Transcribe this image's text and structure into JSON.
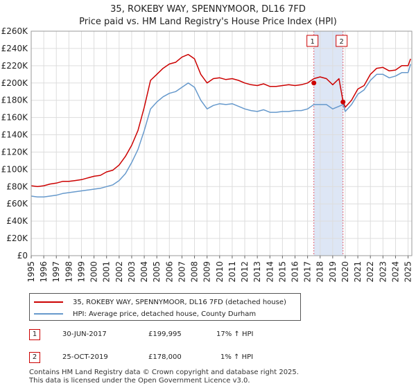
{
  "title": "35, ROKEBY WAY, SPENNYMOOR, DL16 7FD",
  "subtitle": "Price paid vs. HM Land Registry's House Price Index (HPI)",
  "chart_data": {
    "type": "line",
    "xlim": [
      1995,
      2025.3
    ],
    "ylim": [
      0,
      260000
    ],
    "ytick_labels": [
      "£0",
      "£20K",
      "£40K",
      "£60K",
      "£80K",
      "£100K",
      "£120K",
      "£140K",
      "£160K",
      "£180K",
      "£200K",
      "£220K",
      "£240K",
      "£260K"
    ],
    "ytick_values": [
      0,
      20000,
      40000,
      60000,
      80000,
      100000,
      120000,
      140000,
      160000,
      180000,
      200000,
      220000,
      240000,
      260000
    ],
    "xtick_labels": [
      "1995",
      "1996",
      "1997",
      "1998",
      "1999",
      "2000",
      "2001",
      "2002",
      "2003",
      "2004",
      "2005",
      "2006",
      "2007",
      "2008",
      "2009",
      "2010",
      "2011",
      "2012",
      "2013",
      "2014",
      "2015",
      "2016",
      "2017",
      "2018",
      "2019",
      "2020",
      "2021",
      "2022",
      "2023",
      "2024",
      "2025"
    ],
    "xtick_values": [
      1995,
      1996,
      1997,
      1998,
      1999,
      2000,
      2001,
      2002,
      2003,
      2004,
      2005,
      2006,
      2007,
      2008,
      2009,
      2010,
      2011,
      2012,
      2013,
      2014,
      2015,
      2016,
      2017,
      2018,
      2019,
      2020,
      2021,
      2022,
      2023,
      2024,
      2025
    ],
    "grid": true,
    "colors": {
      "property": "#cc0000",
      "hpi": "#6699cc",
      "shade": "#dde6f5",
      "marker_line": "#e06070"
    },
    "series": [
      {
        "name": "35, ROKEBY WAY, SPENNYMOOR, DL16 7FD (detached house)",
        "color": "#cc0000",
        "x": [
          1995,
          1995.5,
          1996,
          1996.5,
          1997,
          1997.5,
          1998,
          1998.5,
          1999,
          1999.5,
          2000,
          2000.5,
          2001,
          2001.5,
          2002,
          2002.5,
          2003,
          2003.5,
          2004,
          2004.5,
          2005,
          2005.5,
          2006,
          2006.5,
          2007,
          2007.5,
          2008,
          2008.5,
          2009,
          2009.5,
          2010,
          2010.5,
          2011,
          2011.5,
          2012,
          2012.5,
          2013,
          2013.5,
          2014,
          2014.5,
          2015,
          2015.5,
          2016,
          2016.5,
          2017,
          2017.5,
          2018,
          2018.5,
          2019,
          2019.5,
          2019.83,
          2020,
          2020.5,
          2021,
          2021.5,
          2022,
          2022.5,
          2023,
          2023.5,
          2024,
          2024.5,
          2025,
          2025.2
        ],
        "y": [
          81000,
          80000,
          81000,
          83000,
          84000,
          86000,
          86000,
          87000,
          88000,
          90000,
          92000,
          93000,
          97000,
          99000,
          105000,
          115000,
          128000,
          145000,
          172000,
          203000,
          210000,
          217000,
          222000,
          224000,
          230000,
          233000,
          228000,
          210000,
          200000,
          205000,
          206000,
          204000,
          205000,
          203000,
          200000,
          198000,
          197000,
          199000,
          196000,
          196000,
          197000,
          198000,
          197000,
          198000,
          199995,
          205000,
          207000,
          205000,
          198000,
          205000,
          178000,
          172000,
          180000,
          193000,
          197000,
          210000,
          217000,
          218000,
          214000,
          215000,
          220000,
          220000,
          228000
        ]
      },
      {
        "name": "HPI: Average price, detached house, County Durham",
        "color": "#6699cc",
        "x": [
          1995,
          1995.5,
          1996,
          1996.5,
          1997,
          1997.5,
          1998,
          1998.5,
          1999,
          1999.5,
          2000,
          2000.5,
          2001,
          2001.5,
          2002,
          2002.5,
          2003,
          2003.5,
          2004,
          2004.5,
          2005,
          2005.5,
          2006,
          2006.5,
          2007,
          2007.5,
          2008,
          2008.5,
          2009,
          2009.5,
          2010,
          2010.5,
          2011,
          2011.5,
          2012,
          2012.5,
          2013,
          2013.5,
          2014,
          2014.5,
          2015,
          2015.5,
          2016,
          2016.5,
          2017,
          2017.5,
          2018,
          2018.5,
          2019,
          2019.5,
          2019.83,
          2020,
          2020.5,
          2021,
          2021.5,
          2022,
          2022.5,
          2023,
          2023.5,
          2024,
          2024.5,
          2025,
          2025.2
        ],
        "y": [
          69000,
          68000,
          68000,
          69000,
          70000,
          72000,
          73000,
          74000,
          75000,
          76000,
          77000,
          78000,
          80000,
          82000,
          87000,
          95000,
          108000,
          123000,
          145000,
          170000,
          178000,
          184000,
          188000,
          190000,
          195000,
          200000,
          195000,
          180000,
          170000,
          174000,
          176000,
          175000,
          176000,
          173000,
          170000,
          168000,
          167000,
          169000,
          166000,
          166000,
          167000,
          167000,
          168000,
          168000,
          170000,
          175000,
          175000,
          175000,
          170000,
          173000,
          175000,
          167000,
          175000,
          187000,
          192000,
          203000,
          210000,
          210000,
          206000,
          208000,
          212000,
          212000,
          222000
        ]
      }
    ],
    "sales": [
      {
        "label": "1",
        "x": 2017.5,
        "price": 199995
      },
      {
        "label": "2",
        "x": 2019.82,
        "price": 178000
      }
    ]
  },
  "legend": {
    "property_label": "35, ROKEBY WAY, SPENNYMOOR, DL16 7FD (detached house)",
    "hpi_label": "HPI: Average price, detached house, County Durham"
  },
  "transactions": [
    {
      "num": "1",
      "date": "30-JUN-2017",
      "price": "£199,995",
      "hpi": "17% ↑ HPI"
    },
    {
      "num": "2",
      "date": "25-OCT-2019",
      "price": "£178,000",
      "hpi": "1% ↑ HPI"
    }
  ],
  "footer": {
    "line1": "Contains HM Land Registry data © Crown copyright and database right 2025.",
    "line2": "This data is licensed under the Open Government Licence v3.0."
  }
}
